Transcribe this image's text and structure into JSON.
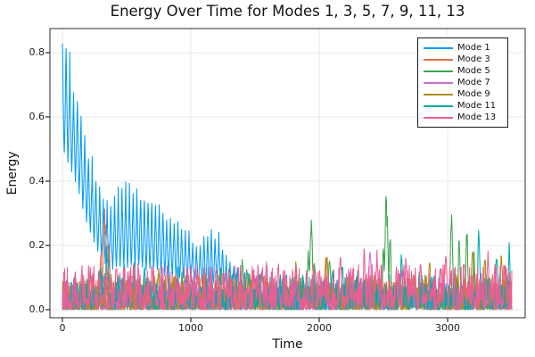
{
  "chart_data": {
    "type": "line",
    "title": "Energy Over Time for Modes 1, 3, 5, 7, 9, 11, 13",
    "xlabel": "Time",
    "ylabel": "Energy",
    "xlim": [
      -97,
      3604
    ],
    "ylim": [
      -0.025,
      0.875
    ],
    "x_ticks": [
      0,
      1000,
      2000,
      3000
    ],
    "y_ticks": [
      0.0,
      0.2,
      0.4,
      0.6,
      0.8
    ],
    "t_range": [
      0,
      3500
    ],
    "grid": true,
    "legend_position": "top-right",
    "series": [
      {
        "name": "Mode 1",
        "color": "#009AFA",
        "oscillation": {
          "period": 29
        },
        "peak_valley_envelope": [
          [
            0,
            0.85,
            0.5
          ],
          [
            30,
            0.8,
            0.47
          ],
          [
            60,
            0.76,
            0.44
          ],
          [
            90,
            0.67,
            0.4
          ],
          [
            120,
            0.66,
            0.37
          ],
          [
            150,
            0.57,
            0.33
          ],
          [
            180,
            0.53,
            0.28
          ],
          [
            210,
            0.46,
            0.24
          ],
          [
            240,
            0.44,
            0.21
          ],
          [
            270,
            0.39,
            0.18
          ],
          [
            300,
            0.35,
            0.16
          ],
          [
            350,
            0.31,
            0.13
          ],
          [
            400,
            0.33,
            0.12
          ],
          [
            440,
            0.36,
            0.13
          ],
          [
            480,
            0.38,
            0.13
          ],
          [
            530,
            0.37,
            0.13
          ],
          [
            580,
            0.35,
            0.13
          ],
          [
            640,
            0.35,
            0.12
          ],
          [
            700,
            0.33,
            0.12
          ],
          [
            760,
            0.31,
            0.11
          ],
          [
            820,
            0.29,
            0.1
          ],
          [
            880,
            0.26,
            0.1
          ],
          [
            940,
            0.25,
            0.09
          ],
          [
            1000,
            0.22,
            0.08
          ],
          [
            1050,
            0.19,
            0.07
          ],
          [
            1100,
            0.22,
            0.07
          ],
          [
            1160,
            0.235,
            0.07
          ],
          [
            1220,
            0.22,
            0.07
          ],
          [
            1280,
            0.15,
            0.06
          ],
          [
            1340,
            0.12,
            0.05
          ],
          [
            1400,
            0.11,
            0.04
          ],
          [
            1460,
            0.1,
            0.04
          ],
          [
            1520,
            0.08,
            0.03
          ],
          [
            1600,
            0.07,
            0.02
          ],
          [
            1800,
            0.06,
            0.02
          ],
          [
            2000,
            0.06,
            0.02
          ],
          [
            2200,
            0.07,
            0.02
          ],
          [
            2400,
            0.06,
            0.02
          ],
          [
            2600,
            0.07,
            0.02
          ],
          [
            2800,
            0.06,
            0.02
          ],
          [
            3000,
            0.07,
            0.02
          ],
          [
            3200,
            0.06,
            0.02
          ],
          [
            3500,
            0.06,
            0.02
          ]
        ]
      },
      {
        "name": "Mode 3",
        "color": "#E26E47",
        "noise_floor": 0.045,
        "spikes": [
          [
            300,
            0.18,
            12
          ],
          [
            330,
            0.32,
            16
          ],
          [
            362,
            0.22,
            12
          ],
          [
            600,
            0.12,
            10
          ],
          [
            1050,
            0.13,
            12
          ],
          [
            1500,
            0.1,
            10
          ],
          [
            2050,
            0.17,
            14
          ],
          [
            2250,
            0.12,
            10
          ],
          [
            2950,
            0.16,
            12
          ],
          [
            3350,
            0.12,
            10
          ]
        ]
      },
      {
        "name": "Mode 5",
        "color": "#3DA44E",
        "noise_floor": 0.04,
        "spikes": [
          [
            600,
            0.13,
            10
          ],
          [
            930,
            0.12,
            10
          ],
          [
            1230,
            0.15,
            12
          ],
          [
            1402,
            0.18,
            10
          ],
          [
            1438,
            0.15,
            9
          ],
          [
            1472,
            0.12,
            9
          ],
          [
            1915,
            0.2,
            12
          ],
          [
            1938,
            0.29,
            16
          ],
          [
            1965,
            0.15,
            10
          ],
          [
            2080,
            0.18,
            12
          ],
          [
            2500,
            0.21,
            10
          ],
          [
            2523,
            0.37,
            16
          ],
          [
            2552,
            0.26,
            11
          ],
          [
            2780,
            0.12,
            10
          ],
          [
            3030,
            0.3,
            13
          ],
          [
            3090,
            0.25,
            11
          ],
          [
            3150,
            0.26,
            11
          ],
          [
            3205,
            0.2,
            10
          ]
        ]
      },
      {
        "name": "Mode 7",
        "color": "#C86FD1",
        "noise_floor": 0.04,
        "spikes": [
          [
            280,
            0.1,
            8
          ],
          [
            450,
            0.12,
            10
          ],
          [
            760,
            0.13,
            10
          ],
          [
            1150,
            0.12,
            10
          ],
          [
            1590,
            0.16,
            12
          ],
          [
            1736,
            0.13,
            10
          ],
          [
            2230,
            0.14,
            10
          ],
          [
            2396,
            0.2,
            12
          ],
          [
            2640,
            0.15,
            10
          ],
          [
            2940,
            0.13,
            10
          ],
          [
            3260,
            0.12,
            10
          ]
        ]
      },
      {
        "name": "Mode 9",
        "color": "#AC8D18",
        "noise_floor": 0.05,
        "spikes": [
          [
            500,
            0.12,
            8
          ],
          [
            750,
            0.15,
            10
          ],
          [
            1100,
            0.12,
            10
          ],
          [
            1400,
            0.1,
            8
          ],
          [
            1819,
            0.16,
            10
          ],
          [
            2060,
            0.17,
            12
          ],
          [
            2480,
            0.13,
            10
          ],
          [
            2860,
            0.16,
            12
          ],
          [
            3194,
            0.23,
            12
          ],
          [
            3290,
            0.18,
            10
          ],
          [
            3420,
            0.2,
            10
          ]
        ]
      },
      {
        "name": "Mode 11",
        "color": "#00AAAE",
        "noise_floor": 0.05,
        "spikes": [
          [
            295,
            0.15,
            10
          ],
          [
            347,
            0.21,
            14
          ],
          [
            480,
            0.15,
            12
          ],
          [
            560,
            0.16,
            12
          ],
          [
            640,
            0.15,
            10
          ],
          [
            900,
            0.14,
            10
          ],
          [
            1354,
            0.14,
            9
          ],
          [
            1540,
            0.13,
            10
          ],
          [
            1900,
            0.12,
            10
          ],
          [
            2104,
            0.13,
            9
          ],
          [
            2180,
            0.16,
            10
          ],
          [
            2300,
            0.13,
            10
          ],
          [
            2640,
            0.18,
            12
          ],
          [
            3243,
            0.26,
            12
          ],
          [
            3382,
            0.21,
            10
          ],
          [
            3480,
            0.22,
            10
          ]
        ]
      },
      {
        "name": "Mode 13",
        "color": "#ED5D92",
        "noise_floor": 0.065,
        "spikes": [
          [
            150,
            0.12,
            8
          ],
          [
            420,
            0.15,
            10
          ],
          [
            550,
            0.14,
            8
          ],
          [
            700,
            0.13,
            8
          ],
          [
            880,
            0.12,
            8
          ],
          [
            1000,
            0.14,
            8
          ],
          [
            1250,
            0.13,
            8
          ],
          [
            1550,
            0.13,
            8
          ],
          [
            1680,
            0.17,
            10
          ],
          [
            1820,
            0.15,
            8
          ],
          [
            2000,
            0.14,
            8
          ],
          [
            2165,
            0.21,
            10
          ],
          [
            2350,
            0.2,
            10
          ],
          [
            2450,
            0.19,
            10
          ],
          [
            2600,
            0.15,
            8
          ],
          [
            2674,
            0.19,
            9
          ],
          [
            2790,
            0.17,
            10
          ],
          [
            2986,
            0.19,
            10
          ],
          [
            3130,
            0.15,
            8
          ],
          [
            3313,
            0.19,
            10
          ],
          [
            3440,
            0.16,
            8
          ]
        ]
      }
    ]
  }
}
